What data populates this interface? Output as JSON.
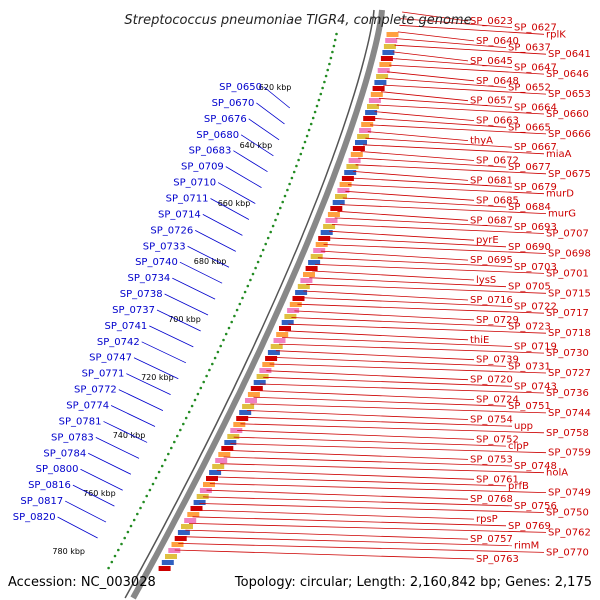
{
  "title": "Streptococcus pneumoniae TIGR4, complete genome",
  "accession": "Accession: NC_003028",
  "topology": "Topology: circular; Length: 2,160,842 bp; Genes: 2,175",
  "colors": {
    "minus_strand": "#0000cc",
    "plus_strand": "#cc0000",
    "backbone": "#888888",
    "gc_dots": "#228b22"
  },
  "ticks": [
    "620 kbp",
    "640 kbp",
    "660 kbp",
    "680 kbp",
    "700 kbp",
    "720 kbp",
    "740 kbp",
    "760 kbp",
    "780 kbp"
  ],
  "left_labels": [
    "SP_0650",
    "SP_0670",
    "SP_0676",
    "SP_0680",
    "SP_0683",
    "SP_0709",
    "SP_0710",
    "SP_0711",
    "SP_0714",
    "SP_0726",
    "SP_0733",
    "SP_0740",
    "SP_0734",
    "SP_0738",
    "SP_0737",
    "SP_0741",
    "SP_0742",
    "SP_0747",
    "SP_0771",
    "SP_0772",
    "SP_0774",
    "SP_0781",
    "SP_0783",
    "SP_0784",
    "SP_0800",
    "SP_0816",
    "SP_0817",
    "SP_0820"
  ],
  "right_labels": [
    "SP_0623",
    "SP_0627",
    "rplK",
    "SP_0640",
    "SP_0637",
    "SP_0641",
    "SP_0645",
    "SP_0647",
    "SP_0646",
    "SP_0648",
    "SP_0652",
    "SP_0653",
    "SP_0657",
    "SP_0664",
    "SP_0660",
    "SP_0663",
    "SP_0665",
    "SP_0666",
    "thyA",
    "SP_0667",
    "miaA",
    "SP_0672",
    "SP_0677",
    "SP_0675",
    "SP_0681",
    "SP_0679",
    "murD",
    "SP_0685",
    "SP_0684",
    "murG",
    "SP_0687",
    "SP_0693",
    "SP_0707",
    "pyrE",
    "SP_0690",
    "SP_0698",
    "SP_0695",
    "SP_0703",
    "SP_0701",
    "lysS",
    "SP_0705",
    "SP_0715",
    "SP_0716",
    "SP_0722",
    "SP_0717",
    "SP_0729",
    "SP_0723",
    "SP_0718",
    "thiE",
    "SP_0719",
    "SP_0730",
    "SP_0739",
    "SP_0731",
    "SP_0727",
    "SP_0720",
    "SP_0743",
    "SP_0736",
    "SP_0724",
    "SP_0751",
    "SP_0744",
    "SP_0754",
    "upp",
    "SP_0758",
    "SP_0752",
    "clpP",
    "SP_0759",
    "SP_0753",
    "SP_0748",
    "holA",
    "SP_0761",
    "prfB",
    "SP_0749",
    "SP_0768",
    "SP_0756",
    "SP_0750",
    "rpsP",
    "SP_0769",
    "SP_0762",
    "SP_0757",
    "rimM",
    "SP_0770",
    "SP_0763"
  ]
}
